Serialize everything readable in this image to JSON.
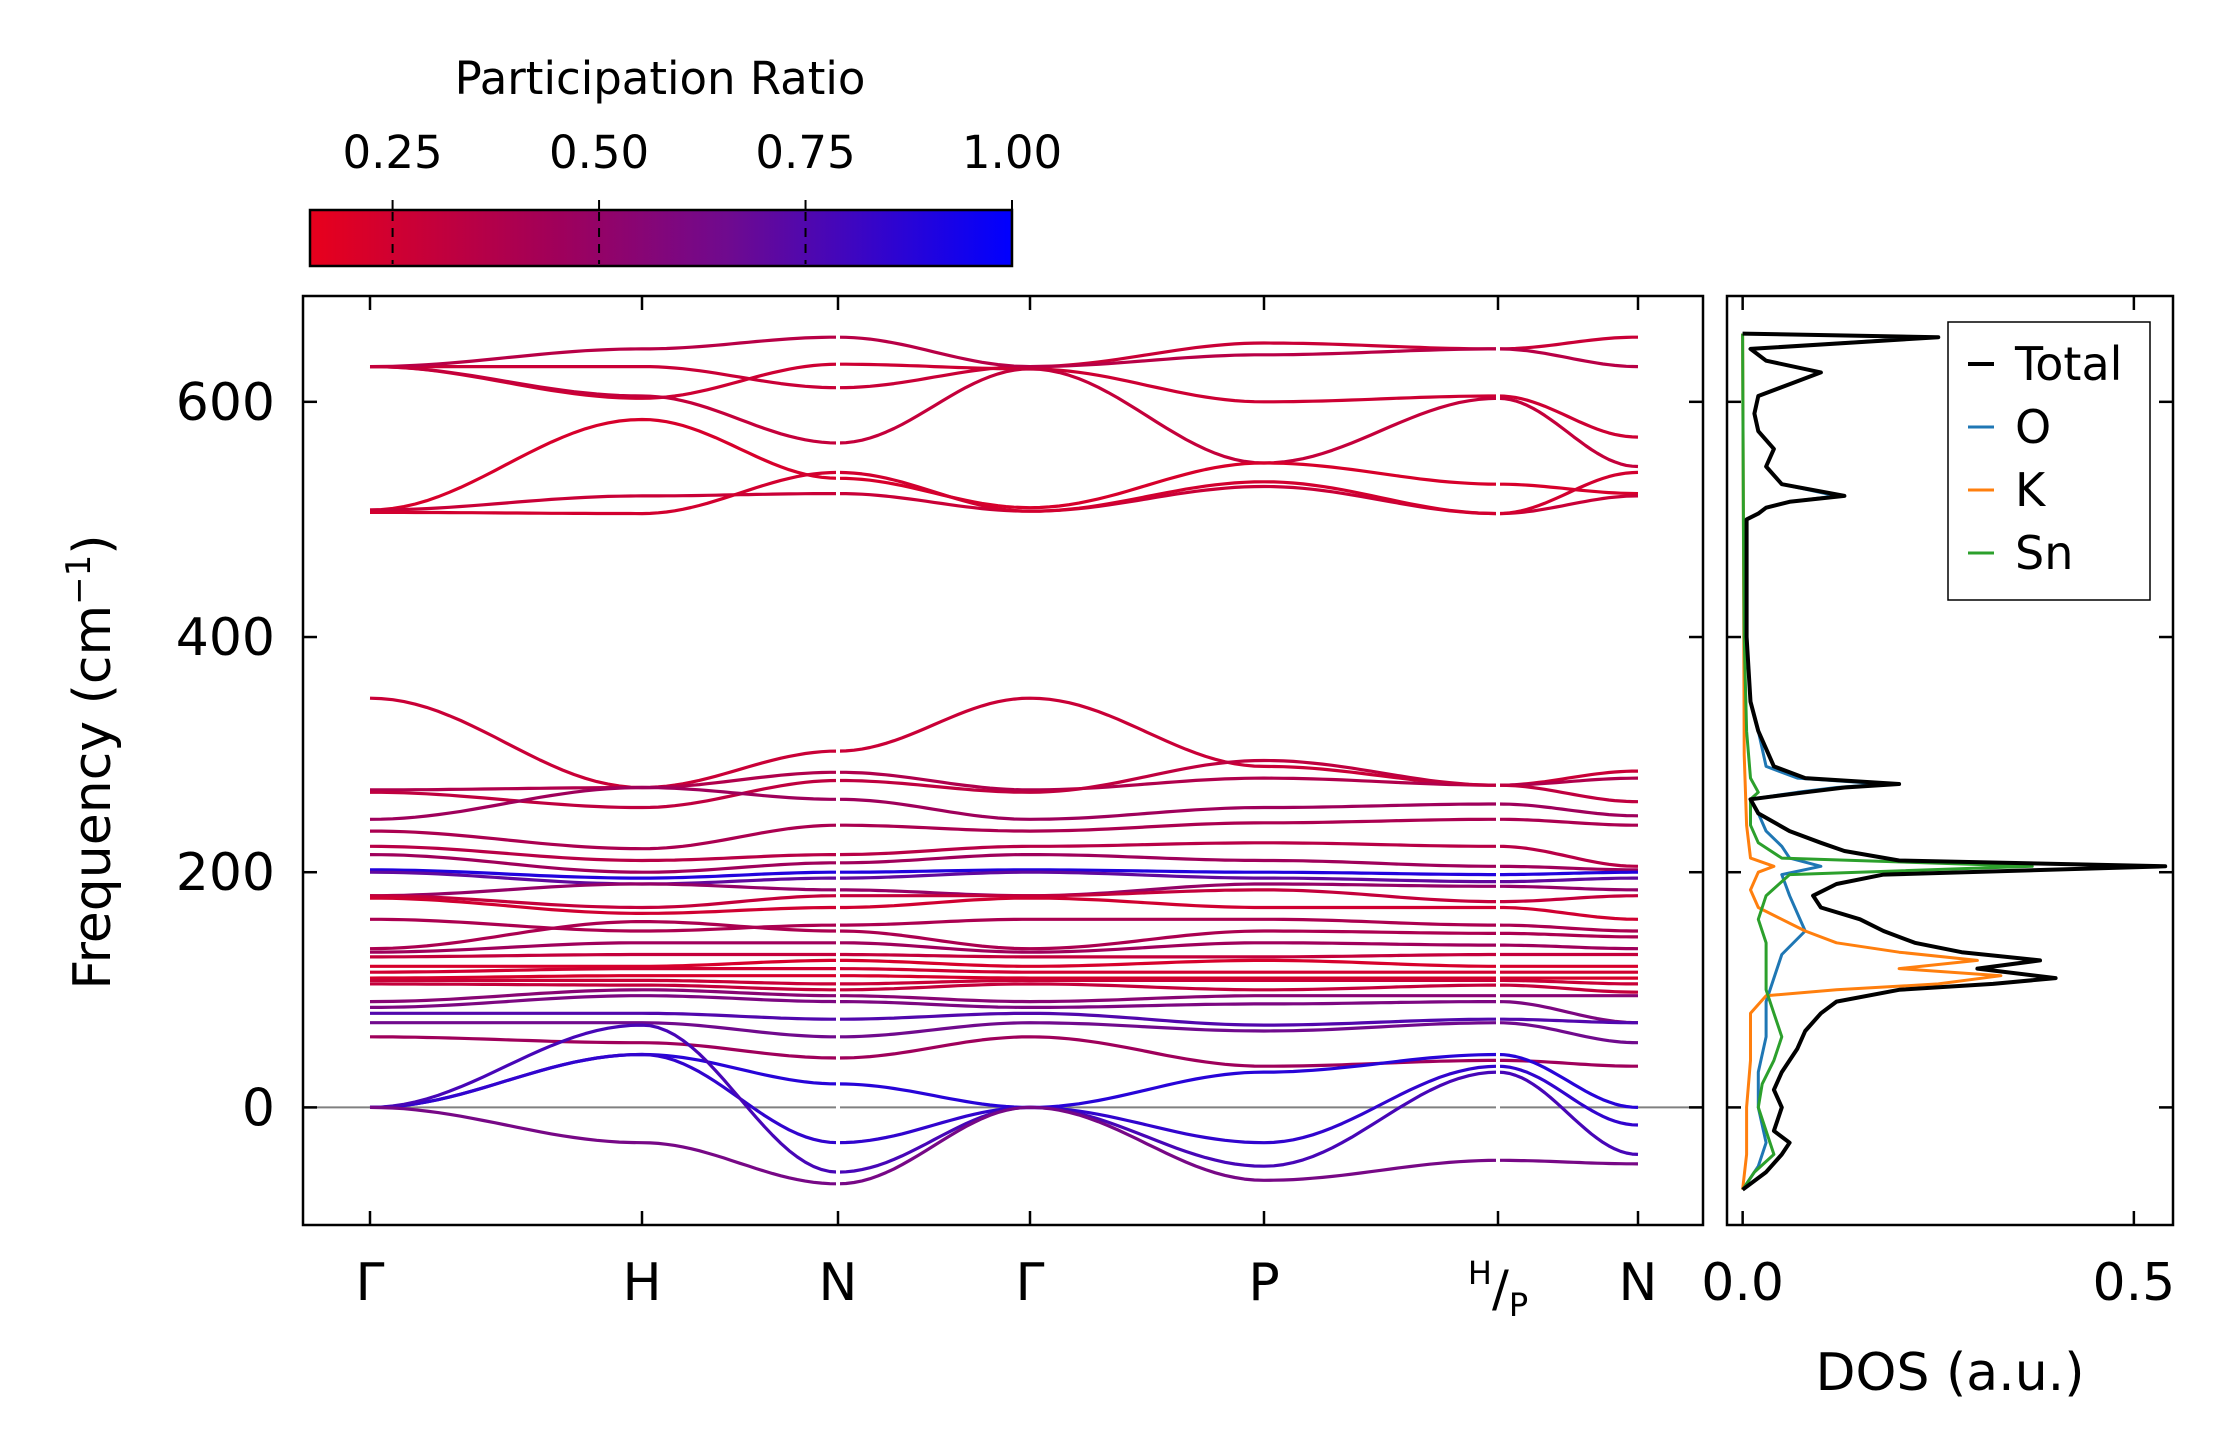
{
  "colorbar": {
    "label": "Participation Ratio",
    "range": [
      0.15,
      1.0
    ],
    "ticks": [
      0.25,
      0.5,
      0.75,
      1.0
    ],
    "tick_labels": [
      "0.25",
      "0.50",
      "0.75",
      "1.00"
    ],
    "color_low": "#e8001c",
    "color_mid": "#7a0a78",
    "color_high": "#0000ff"
  },
  "chart_data": [
    {
      "type": "line",
      "title": "",
      "xlabel": "",
      "ylabel": "Frequency (cm⁻¹)",
      "ylabel_main": "Frequency (cm",
      "ylabel_sup": "−1",
      "ylabel_close": ")",
      "ylim": [
        -100,
        690
      ],
      "yticks": [
        0,
        200,
        400,
        600
      ],
      "ytick_labels": [
        "0",
        "200",
        "400",
        "600"
      ],
      "zero_line_color": "#808080",
      "kpoints": [
        {
          "label": "Γ",
          "x": 0.0
        },
        {
          "label": "H",
          "x": 1.0
        },
        {
          "label": "N",
          "x": 1.707
        },
        {
          "label": "Γ",
          "x": 2.414
        },
        {
          "label": "P",
          "x": 3.28
        },
        {
          "label": "H/P",
          "x": 4.146
        },
        {
          "label": "N",
          "x": 4.646
        }
      ],
      "hp_label": {
        "sup": "H",
        "slash": "/",
        "sub": "P"
      },
      "segments": [
        {
          "from": 0.0,
          "to": 1.707
        },
        {
          "from": 1.707,
          "to": 4.146
        },
        {
          "from": 4.146,
          "to": 4.646
        }
      ],
      "bands": [
        {
          "y0": 630,
          "y1": 630,
          "y2": 612,
          "y3": 630,
          "y4": 650,
          "y5": 645,
          "y6": 655,
          "pr": 0.28
        },
        {
          "y0": 630,
          "y1": 645,
          "y2": 655,
          "y3": 630,
          "y4": 640,
          "y5": 645,
          "y6": 630,
          "pr": 0.35
        },
        {
          "y0": 630,
          "y1": 603,
          "y2": 632,
          "y3": 628,
          "y4": 600,
          "y5": 605,
          "y6": 570,
          "pr": 0.26
        },
        {
          "y0": 630,
          "y1": 605,
          "y2": 565,
          "y3": 628,
          "y4": 548,
          "y5": 603,
          "y6": 545,
          "pr": 0.3
        },
        {
          "y0": 508,
          "y1": 585,
          "y2": 535,
          "y3": 510,
          "y4": 548,
          "y5": 530,
          "y6": 522,
          "pr": 0.22
        },
        {
          "y0": 508,
          "y1": 520,
          "y2": 522,
          "y3": 507,
          "y4": 528,
          "y5": 505,
          "y6": 520,
          "pr": 0.28
        },
        {
          "y0": 506,
          "y1": 505,
          "y2": 540,
          "y3": 507,
          "y4": 532,
          "y5": 505,
          "y6": 540,
          "pr": 0.24
        },
        {
          "y0": 348,
          "y1": 272,
          "y2": 303,
          "y3": 348,
          "y4": 290,
          "y5": 274,
          "y6": 286,
          "pr": 0.28
        },
        {
          "y0": 270,
          "y1": 272,
          "y2": 285,
          "y3": 270,
          "y4": 280,
          "y5": 274,
          "y6": 280,
          "pr": 0.38
        },
        {
          "y0": 268,
          "y1": 255,
          "y2": 278,
          "y3": 268,
          "y4": 295,
          "y5": 274,
          "y6": 260,
          "pr": 0.32
        },
        {
          "y0": 245,
          "y1": 272,
          "y2": 262,
          "y3": 245,
          "y4": 255,
          "y5": 258,
          "y6": 248,
          "pr": 0.45
        },
        {
          "y0": 235,
          "y1": 220,
          "y2": 240,
          "y3": 235,
          "y4": 242,
          "y5": 245,
          "y6": 240,
          "pr": 0.4
        },
        {
          "y0": 222,
          "y1": 210,
          "y2": 215,
          "y3": 222,
          "y4": 225,
          "y5": 222,
          "y6": 205,
          "pr": 0.35
        },
        {
          "y0": 215,
          "y1": 200,
          "y2": 208,
          "y3": 215,
          "y4": 210,
          "y5": 205,
          "y6": 202,
          "pr": 0.45
        },
        {
          "y0": 202,
          "y1": 195,
          "y2": 200,
          "y3": 202,
          "y4": 200,
          "y5": 198,
          "y6": 200,
          "pr": 0.9
        },
        {
          "y0": 200,
          "y1": 190,
          "y2": 195,
          "y3": 200,
          "y4": 195,
          "y5": 192,
          "y6": 195,
          "pr": 0.7
        },
        {
          "y0": 180,
          "y1": 190,
          "y2": 185,
          "y3": 180,
          "y4": 190,
          "y5": 188,
          "y6": 185,
          "pr": 0.5
        },
        {
          "y0": 180,
          "y1": 170,
          "y2": 180,
          "y3": 180,
          "y4": 185,
          "y5": 175,
          "y6": 180,
          "pr": 0.3
        },
        {
          "y0": 178,
          "y1": 165,
          "y2": 170,
          "y3": 178,
          "y4": 170,
          "y5": 170,
          "y6": 160,
          "pr": 0.25
        },
        {
          "y0": 160,
          "y1": 150,
          "y2": 155,
          "y3": 160,
          "y4": 160,
          "y5": 155,
          "y6": 150,
          "pr": 0.4
        },
        {
          "y0": 135,
          "y1": 158,
          "y2": 150,
          "y3": 135,
          "y4": 150,
          "y5": 148,
          "y6": 145,
          "pr": 0.4
        },
        {
          "y0": 132,
          "y1": 140,
          "y2": 140,
          "y3": 132,
          "y4": 140,
          "y5": 138,
          "y6": 135,
          "pr": 0.45
        },
        {
          "y0": 128,
          "y1": 130,
          "y2": 130,
          "y3": 128,
          "y4": 128,
          "y5": 130,
          "y6": 130,
          "pr": 0.3
        },
        {
          "y0": 120,
          "y1": 120,
          "y2": 125,
          "y3": 120,
          "y4": 125,
          "y5": 120,
          "y6": 120,
          "pr": 0.22
        },
        {
          "y0": 115,
          "y1": 118,
          "y2": 118,
          "y3": 115,
          "y4": 115,
          "y5": 115,
          "y6": 115,
          "pr": 0.25
        },
        {
          "y0": 110,
          "y1": 112,
          "y2": 112,
          "y3": 110,
          "y4": 110,
          "y5": 110,
          "y6": 110,
          "pr": 0.22
        },
        {
          "y0": 108,
          "y1": 108,
          "y2": 105,
          "y3": 108,
          "y4": 108,
          "y5": 108,
          "y6": 105,
          "pr": 0.28
        },
        {
          "y0": 105,
          "y1": 104,
          "y2": 100,
          "y3": 105,
          "y4": 100,
          "y5": 104,
          "y6": 98,
          "pr": 0.3
        },
        {
          "y0": 90,
          "y1": 100,
          "y2": 95,
          "y3": 90,
          "y4": 95,
          "y5": 95,
          "y6": 95,
          "pr": 0.55
        },
        {
          "y0": 85,
          "y1": 95,
          "y2": 90,
          "y3": 85,
          "y4": 88,
          "y5": 90,
          "y6": 72,
          "pr": 0.6
        },
        {
          "y0": 80,
          "y1": 80,
          "y2": 75,
          "y3": 80,
          "y4": 70,
          "y5": 75,
          "y6": 72,
          "pr": 0.75
        },
        {
          "y0": 72,
          "y1": 72,
          "y2": 60,
          "y3": 72,
          "y4": 65,
          "y5": 72,
          "y6": 55,
          "pr": 0.65
        },
        {
          "y0": 60,
          "y1": 55,
          "y2": 42,
          "y3": 60,
          "y4": 35,
          "y5": 40,
          "y6": 35,
          "pr": 0.45
        },
        {
          "y0": 0,
          "y1": 45,
          "y2": 20,
          "y3": 0,
          "y4": 30,
          "y5": 45,
          "y6": 0,
          "pr": 0.88
        },
        {
          "y0": 0,
          "y1": 45,
          "y2": -30,
          "y3": 0,
          "y4": -30,
          "y5": 35,
          "y6": -15,
          "pr": 0.85
        },
        {
          "y0": 0,
          "y1": 70,
          "y2": -55,
          "y3": 0,
          "y4": -50,
          "y5": 30,
          "y6": -40,
          "pr": 0.78
        },
        {
          "y0": 0,
          "y1": -30,
          "y2": -65,
          "y3": 0,
          "y4": -62,
          "y5": -45,
          "y6": -48,
          "pr": 0.62
        }
      ]
    },
    {
      "type": "line",
      "title": "",
      "xlabel": "DOS (a.u.)",
      "ylabel": "",
      "xlim": [
        -0.02,
        0.55
      ],
      "xticks": [
        0.0,
        0.5
      ],
      "xtick_labels": [
        "0.0",
        "0.5"
      ],
      "ylim": [
        -100,
        690
      ],
      "legend_position": "top-right",
      "series": [
        {
          "name": "Total",
          "color": "#000000",
          "points": [
            [
              0.0,
              -70
            ],
            [
              0.03,
              -55
            ],
            [
              0.05,
              -40
            ],
            [
              0.06,
              -30
            ],
            [
              0.04,
              -20
            ],
            [
              0.05,
              0
            ],
            [
              0.04,
              15
            ],
            [
              0.05,
              30
            ],
            [
              0.07,
              50
            ],
            [
              0.08,
              65
            ],
            [
              0.1,
              80
            ],
            [
              0.12,
              90
            ],
            [
              0.2,
              100
            ],
            [
              0.32,
              105
            ],
            [
              0.4,
              110
            ],
            [
              0.3,
              118
            ],
            [
              0.38,
              125
            ],
            [
              0.28,
              132
            ],
            [
              0.22,
              140
            ],
            [
              0.18,
              150
            ],
            [
              0.15,
              160
            ],
            [
              0.1,
              170
            ],
            [
              0.09,
              180
            ],
            [
              0.12,
              190
            ],
            [
              0.18,
              198
            ],
            [
              0.54,
              205
            ],
            [
              0.2,
              210
            ],
            [
              0.13,
              218
            ],
            [
              0.1,
              225
            ],
            [
              0.06,
              235
            ],
            [
              0.02,
              250
            ],
            [
              0.01,
              262
            ],
            [
              0.08,
              268
            ],
            [
              0.13,
              272
            ],
            [
              0.2,
              275
            ],
            [
              0.08,
              280
            ],
            [
              0.04,
              290
            ],
            [
              0.02,
              320
            ],
            [
              0.01,
              345
            ],
            [
              0.005,
              400
            ],
            [
              0.005,
              500
            ],
            [
              0.02,
              505
            ],
            [
              0.03,
              510
            ],
            [
              0.06,
              515
            ],
            [
              0.13,
              520
            ],
            [
              0.05,
              530
            ],
            [
              0.03,
              545
            ],
            [
              0.04,
              560
            ],
            [
              0.02,
              575
            ],
            [
              0.015,
              590
            ],
            [
              0.02,
              605
            ],
            [
              0.1,
              625
            ],
            [
              0.03,
              635
            ],
            [
              0.01,
              645
            ],
            [
              0.25,
              655
            ],
            [
              0.0,
              658
            ]
          ]
        },
        {
          "name": "O",
          "color": "#1f77b4",
          "points": [
            [
              0.0,
              -70
            ],
            [
              0.02,
              -50
            ],
            [
              0.03,
              -30
            ],
            [
              0.02,
              0
            ],
            [
              0.02,
              30
            ],
            [
              0.03,
              60
            ],
            [
              0.03,
              90
            ],
            [
              0.04,
              110
            ],
            [
              0.05,
              130
            ],
            [
              0.08,
              150
            ],
            [
              0.07,
              165
            ],
            [
              0.06,
              180
            ],
            [
              0.05,
              198
            ],
            [
              0.1,
              205
            ],
            [
              0.06,
              212
            ],
            [
              0.05,
              222
            ],
            [
              0.03,
              235
            ],
            [
              0.02,
              250
            ],
            [
              0.01,
              262
            ],
            [
              0.07,
              268
            ],
            [
              0.12,
              272
            ],
            [
              0.18,
              275
            ],
            [
              0.07,
              280
            ],
            [
              0.03,
              290
            ],
            [
              0.02,
              320
            ],
            [
              0.01,
              345
            ],
            [
              0.005,
              400
            ],
            [
              0.005,
              500
            ],
            [
              0.02,
              505
            ],
            [
              0.03,
              510
            ],
            [
              0.06,
              515
            ],
            [
              0.12,
              520
            ],
            [
              0.05,
              530
            ],
            [
              0.03,
              545
            ],
            [
              0.04,
              560
            ],
            [
              0.02,
              575
            ],
            [
              0.015,
              590
            ],
            [
              0.02,
              605
            ],
            [
              0.1,
              625
            ],
            [
              0.03,
              635
            ],
            [
              0.01,
              645
            ],
            [
              0.24,
              655
            ],
            [
              0.0,
              658
            ]
          ]
        },
        {
          "name": "K",
          "color": "#ff7f0e",
          "points": [
            [
              0.0,
              -70
            ],
            [
              0.005,
              -40
            ],
            [
              0.005,
              0
            ],
            [
              0.01,
              40
            ],
            [
              0.01,
              80
            ],
            [
              0.03,
              95
            ],
            [
              0.12,
              100
            ],
            [
              0.25,
              105
            ],
            [
              0.33,
              112
            ],
            [
              0.2,
              118
            ],
            [
              0.3,
              125
            ],
            [
              0.2,
              132
            ],
            [
              0.12,
              140
            ],
            [
              0.08,
              150
            ],
            [
              0.05,
              160
            ],
            [
              0.02,
              170
            ],
            [
              0.01,
              185
            ],
            [
              0.02,
              200
            ],
            [
              0.04,
              205
            ],
            [
              0.01,
              212
            ],
            [
              0.005,
              240
            ],
            [
              0.002,
              300
            ],
            [
              0.001,
              500
            ],
            [
              0.0,
              658
            ]
          ]
        },
        {
          "name": "Sn",
          "color": "#2ca02c",
          "points": [
            [
              0.0,
              -70
            ],
            [
              0.015,
              -55
            ],
            [
              0.04,
              -40
            ],
            [
              0.03,
              -20
            ],
            [
              0.02,
              0
            ],
            [
              0.025,
              20
            ],
            [
              0.04,
              40
            ],
            [
              0.05,
              60
            ],
            [
              0.04,
              80
            ],
            [
              0.03,
              100
            ],
            [
              0.03,
              120
            ],
            [
              0.03,
              140
            ],
            [
              0.02,
              160
            ],
            [
              0.03,
              180
            ],
            [
              0.06,
              198
            ],
            [
              0.37,
              205
            ],
            [
              0.05,
              212
            ],
            [
              0.02,
              225
            ],
            [
              0.01,
              240
            ],
            [
              0.01,
              262
            ],
            [
              0.02,
              268
            ],
            [
              0.01,
              280
            ],
            [
              0.005,
              320
            ],
            [
              0.002,
              400
            ],
            [
              0.001,
              500
            ],
            [
              0.0,
              658
            ]
          ]
        }
      ]
    }
  ]
}
